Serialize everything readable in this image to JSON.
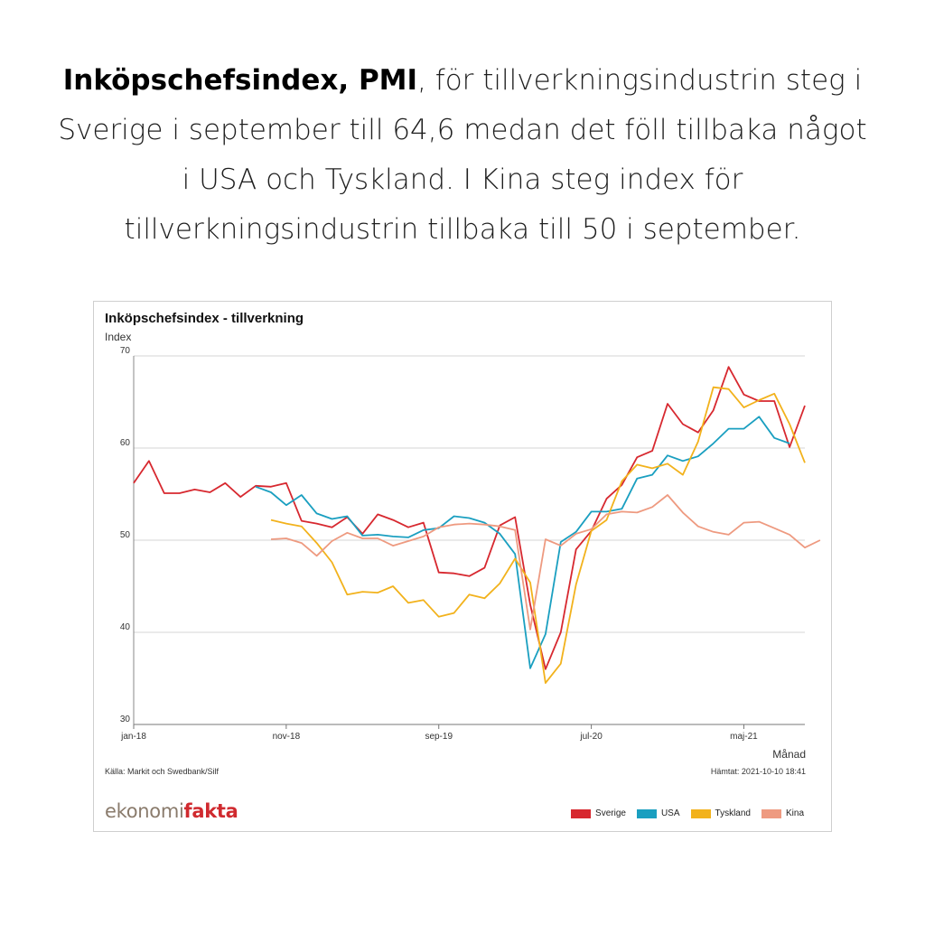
{
  "headline": {
    "bold": "Inköpschefsindex, PMI",
    "rest": ", för tillverkningsindustrin steg i Sverige i september till 64,6 medan det föll tillbaka något i USA och Tyskland. I Kina steg index för tillverkningsindustrin tillbaka till 50 i september."
  },
  "chart_data": {
    "type": "line",
    "title": "Inköpschefsindex - tillverkning",
    "ylabel": "Index",
    "xlabel": "Månad",
    "ylim": [
      30,
      70
    ],
    "yticks": [
      30,
      40,
      50,
      60,
      70
    ],
    "xlim": [
      "2018-01",
      "2021-09"
    ],
    "xticks": [
      {
        "label": "jan-18",
        "index": 0
      },
      {
        "label": "nov-18",
        "index": 10
      },
      {
        "label": "sep-19",
        "index": 20
      },
      {
        "label": "jul-20",
        "index": 30
      },
      {
        "label": "maj-21",
        "index": 40
      }
    ],
    "grid": true,
    "legend_position": "bottom-right",
    "series": [
      {
        "name": "Sverige",
        "color": "#d7282f",
        "start_index": 0,
        "values": [
          56.2,
          58.6,
          55.1,
          55.1,
          55.5,
          55.2,
          56.2,
          54.7,
          55.9,
          55.8,
          56.2,
          52.1,
          51.8,
          51.4,
          52.5,
          50.7,
          52.8,
          52.2,
          51.4,
          51.9,
          46.5,
          46.4,
          46.1,
          47.0,
          51.6,
          52.5,
          43.0,
          36.0,
          40.0,
          49.0,
          51.0,
          54.5,
          56.0,
          59.0,
          59.7,
          64.8,
          62.6,
          61.7,
          64.1,
          68.8,
          65.8,
          65.1,
          65.1,
          60.1,
          64.6
        ]
      },
      {
        "name": "USA",
        "color": "#1a9fc0",
        "start_index": 8,
        "values": [
          55.8,
          55.2,
          53.8,
          54.9,
          52.9,
          52.3,
          52.6,
          50.5,
          50.6,
          50.4,
          50.3,
          51.1,
          51.3,
          52.6,
          52.4,
          51.9,
          50.7,
          48.5,
          36.1,
          39.8,
          49.8,
          50.9,
          53.1,
          53.1,
          53.4,
          56.7,
          57.1,
          59.2,
          58.6,
          59.1,
          60.5,
          62.1,
          62.1,
          63.4,
          61.1,
          60.5
        ]
      },
      {
        "name": "Tyskland",
        "color": "#f2b21c",
        "start_index": 9,
        "values": [
          52.2,
          51.8,
          51.5,
          49.7,
          47.6,
          44.1,
          44.4,
          44.3,
          45.0,
          43.2,
          43.5,
          41.7,
          42.1,
          44.1,
          43.7,
          45.3,
          48.0,
          45.4,
          34.5,
          36.6,
          45.2,
          51.0,
          52.2,
          56.4,
          58.2,
          57.8,
          58.3,
          57.1,
          60.7,
          66.6,
          66.4,
          64.4,
          65.2,
          65.9,
          62.6,
          58.4
        ]
      },
      {
        "name": "Kina",
        "color": "#ee9a80",
        "start_index": 9,
        "values": [
          50.1,
          50.2,
          49.7,
          48.3,
          49.9,
          50.8,
          50.2,
          50.2,
          49.4,
          49.9,
          50.4,
          51.4,
          51.7,
          51.8,
          51.7,
          51.5,
          51.1,
          40.3,
          50.1,
          49.4,
          50.7,
          51.2,
          52.8,
          53.1,
          53.0,
          53.6,
          54.9,
          53.0,
          51.5,
          50.9,
          50.6,
          51.9,
          52.0,
          51.3,
          50.6,
          49.2,
          50.0
        ]
      }
    ]
  },
  "source": "Källa: Markit och Swedbank/Silf",
  "fetched": "Hämtat: 2021-10-10 18:41",
  "logo": {
    "part1": "ekonomi",
    "part2": "fakta"
  }
}
